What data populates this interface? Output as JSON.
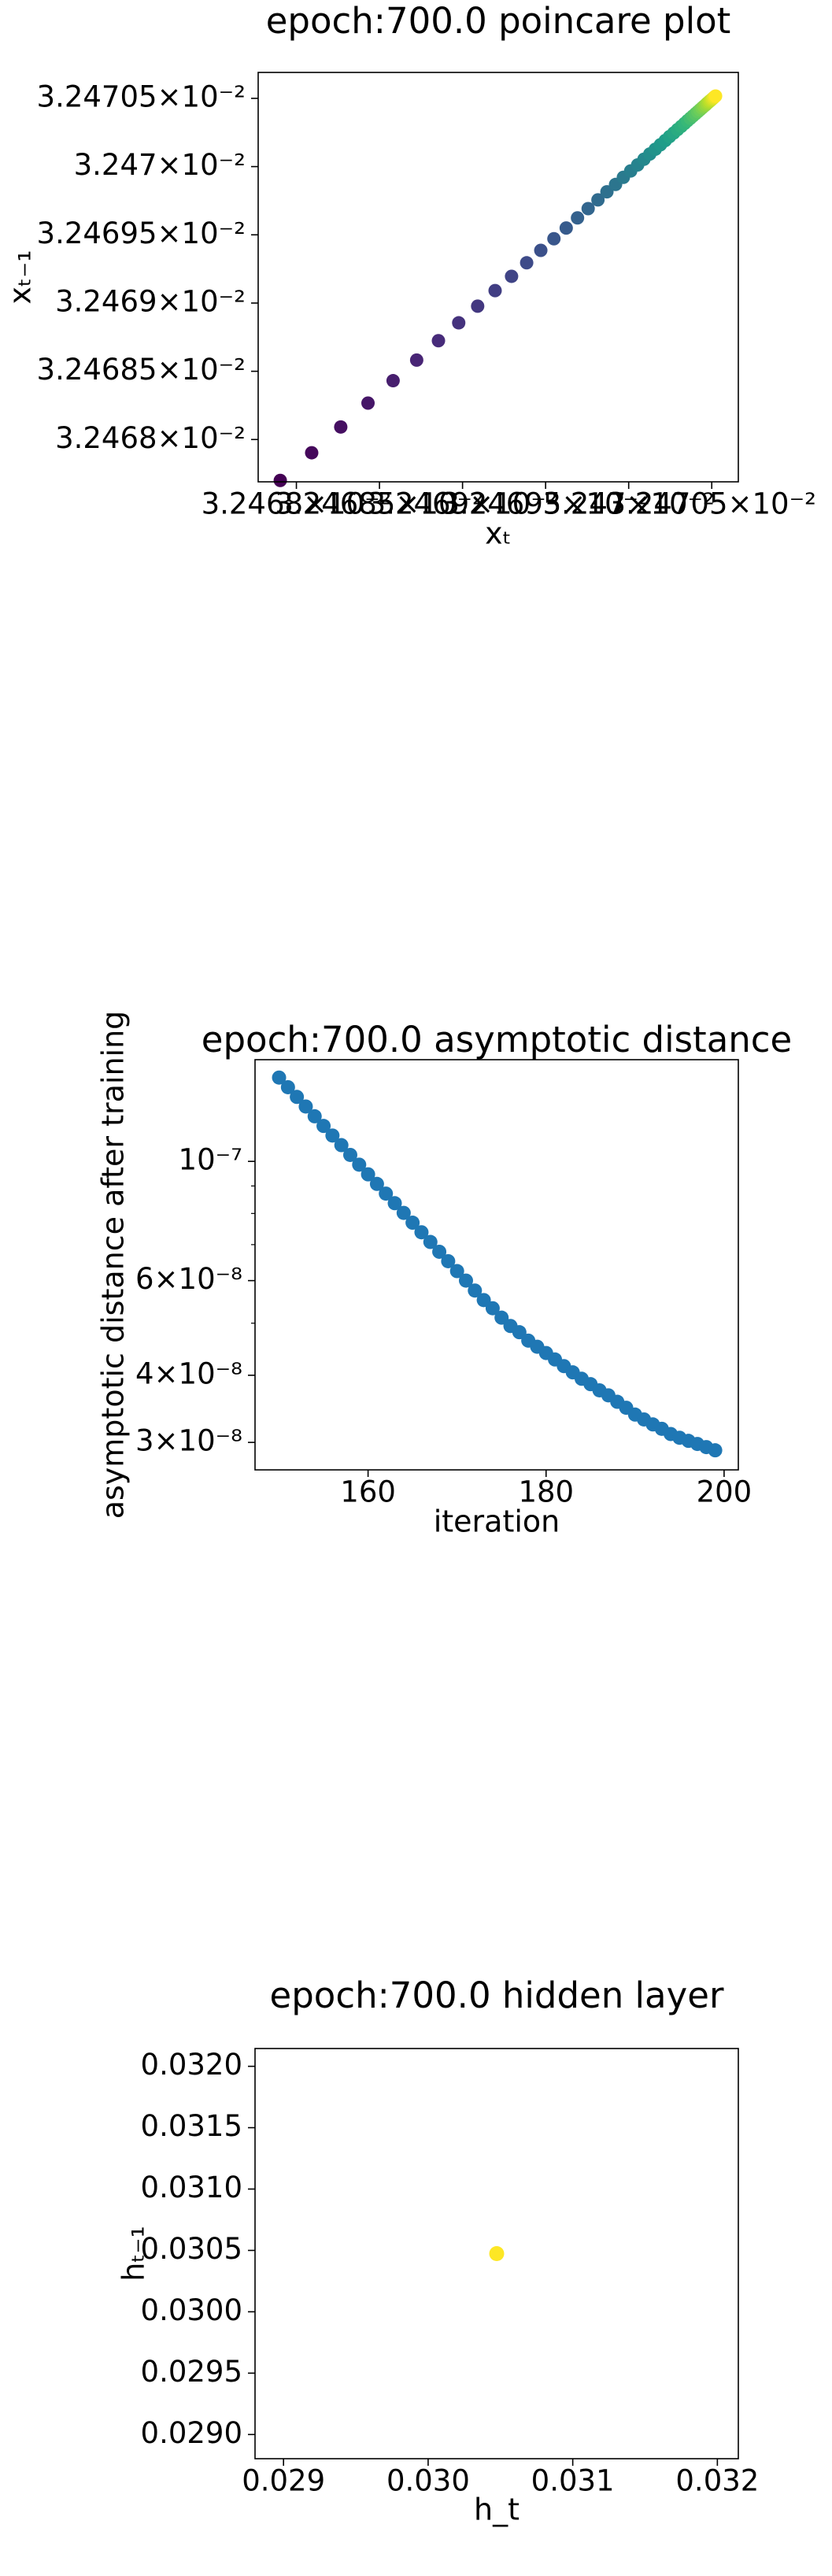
{
  "chart_data": [
    {
      "type": "scatter",
      "title": "epoch:700.0 poincare plot",
      "xlabel": "xₜ",
      "ylabel": "xₜ₋₁",
      "xscale": "log",
      "yscale": "log",
      "colormap": "viridis",
      "x": [
        0.032467903,
        0.032468092,
        0.032468267,
        0.032468431,
        0.032468582,
        0.032468724,
        0.032468855,
        0.032468977,
        0.032469091,
        0.032469196,
        0.032469295,
        0.032469386,
        0.032469471,
        0.03246955,
        0.032469624,
        0.032469692,
        0.032469756,
        0.032469815,
        0.032469869,
        0.032469921,
        0.032469968,
        0.032470012,
        0.032470054,
        0.032470092,
        0.032470127,
        0.03247016,
        0.032470191,
        0.03247022,
        0.032470246,
        0.032470271,
        0.032470294,
        0.032470316,
        0.032470336,
        0.032470354,
        0.032470371,
        0.032470387,
        0.032470402,
        0.032470416,
        0.032470429,
        0.032470441,
        0.032470452,
        0.032470463,
        0.032470472,
        0.032470481,
        0.032470489,
        0.032470497,
        0.032470504,
        0.032470511,
        0.032470517,
        0.032470523
      ],
      "y": [
        0.0324677,
        0.032467903,
        0.032468092,
        0.032468267,
        0.032468431,
        0.032468582,
        0.032468724,
        0.032468855,
        0.032468977,
        0.032469091,
        0.032469196,
        0.032469295,
        0.032469386,
        0.032469471,
        0.03246955,
        0.032469624,
        0.032469692,
        0.032469756,
        0.032469815,
        0.032469869,
        0.032469921,
        0.032469968,
        0.032470012,
        0.032470054,
        0.032470092,
        0.032470127,
        0.03247016,
        0.032470191,
        0.03247022,
        0.032470246,
        0.032470271,
        0.032470294,
        0.032470316,
        0.032470336,
        0.032470354,
        0.032470371,
        0.032470387,
        0.032470402,
        0.032470416,
        0.032470429,
        0.032470441,
        0.032470452,
        0.032470463,
        0.032470472,
        0.032470481,
        0.032470489,
        0.032470497,
        0.032470504,
        0.032470511,
        0.032470517
      ],
      "xlim": [
        0.03246777,
        0.03247066
      ],
      "ylim": [
        0.03246769,
        0.03247069
      ],
      "xticks": [
        {
          "value": 0.032468,
          "label": "3.2468×10⁻²"
        },
        {
          "value": 0.0324685,
          "label": "3.24685×10⁻²"
        },
        {
          "value": 0.032469,
          "label": "3.2469×10⁻²"
        },
        {
          "value": 0.0324695,
          "label": "3.24695×10⁻²"
        },
        {
          "value": 0.03247,
          "label": "3.247×10⁻²"
        },
        {
          "value": 0.0324705,
          "label": "3.24705×10⁻²"
        }
      ],
      "yticks": [
        {
          "value": 0.032468,
          "label": "3.2468×10⁻²"
        },
        {
          "value": 0.0324685,
          "label": "3.24685×10⁻²"
        },
        {
          "value": 0.032469,
          "label": "3.2469×10⁻²"
        },
        {
          "value": 0.0324695,
          "label": "3.24695×10⁻²"
        },
        {
          "value": 0.03247,
          "label": "3.247×10⁻²"
        },
        {
          "value": 0.0324705,
          "label": "3.24705×10⁻²"
        }
      ]
    },
    {
      "type": "scatter",
      "title": "epoch:700.0 asymptotic distance",
      "xlabel": "iteration",
      "ylabel": "asymptotic distance after training",
      "yscale": "log",
      "color": "#1f77b4",
      "x": [
        150,
        151,
        152,
        153,
        154,
        155,
        156,
        157,
        158,
        159,
        160,
        161,
        162,
        163,
        164,
        165,
        166,
        167,
        168,
        169,
        170,
        171,
        172,
        173,
        174,
        175,
        176,
        177,
        178,
        179,
        180,
        181,
        182,
        183,
        184,
        185,
        186,
        187,
        188,
        189,
        190,
        191,
        192,
        193,
        194,
        195,
        196,
        197,
        198,
        199
      ],
      "y": [
        1.432e-07,
        1.374e-07,
        1.318e-07,
        1.265e-07,
        1.213e-07,
        1.164e-07,
        1.117e-07,
        1.072e-07,
        1.028e-07,
        9.86e-08,
        9.46e-08,
        9.08e-08,
        8.71e-08,
        8.36e-08,
        8.02e-08,
        7.69e-08,
        7.38e-08,
        7.08e-08,
        6.79e-08,
        6.52e-08,
        6.25e-08,
        6e-08,
        5.75e-08,
        5.52e-08,
        5.33e-08,
        5.12e-08,
        4.94e-08,
        4.81e-08,
        4.64e-08,
        4.52e-08,
        4.4e-08,
        4.28e-08,
        4.16e-08,
        4.05e-08,
        3.94e-08,
        3.85e-08,
        3.75e-08,
        3.67e-08,
        3.57e-08,
        3.48e-08,
        3.38e-08,
        3.31e-08,
        3.24e-08,
        3.18e-08,
        3.11e-08,
        3.06e-08,
        3.02e-08,
        2.98e-08,
        2.94e-08,
        2.9e-08
      ],
      "xlim": [
        147.3,
        201.6
      ],
      "ylim": [
        2.667e-08,
        1.546e-07
      ],
      "xticks": [
        160,
        180,
        200
      ],
      "yticks": [
        {
          "value": 1e-07,
          "label": "10⁻⁷"
        },
        {
          "value": 6e-08,
          "label": "6×10⁻⁸"
        },
        {
          "value": 4e-08,
          "label": "4×10⁻⁸"
        },
        {
          "value": 3e-08,
          "label": "3×10⁻⁸"
        }
      ],
      "yminorticks": [
        5e-08,
        7e-08,
        8e-08,
        9e-08
      ]
    },
    {
      "type": "scatter",
      "title": "epoch:700.0 hidden layer",
      "xlabel": "h_t",
      "ylabel": "hₜ₋₁",
      "colormap": "viridis",
      "x": [
        0.030474
      ],
      "y": [
        0.030474
      ],
      "xlim": [
        0.028803,
        0.032145
      ],
      "ylim": [
        0.028803,
        0.032145
      ],
      "xticks": [
        0.029,
        {
          "value": 0.03,
          "label": "0.030"
        },
        0.031,
        0.032
      ],
      "yticks": [
        {
          "value": 0.029,
          "label": "0.0290"
        },
        0.0295,
        {
          "value": 0.03,
          "label": "0.0300"
        },
        0.0305,
        {
          "value": 0.031,
          "label": "0.0310"
        },
        0.0315,
        {
          "value": 0.032,
          "label": "0.0320"
        }
      ]
    }
  ]
}
